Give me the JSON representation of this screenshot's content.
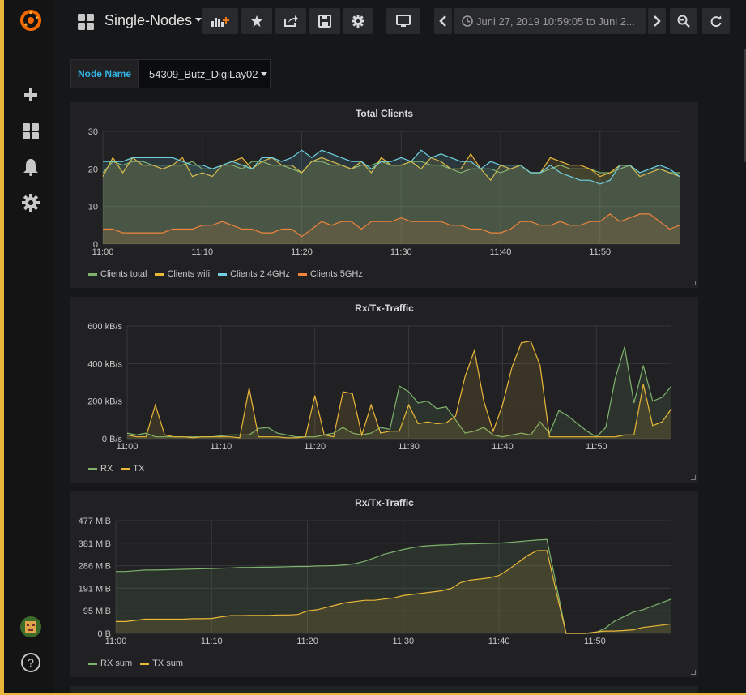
{
  "header": {
    "dashboard_title": "Single-Nodes",
    "time_range": "Juni 27, 2019 10:59:05 to Juni 2...",
    "icons": [
      "grafana-logo-icon",
      "dashboards-grid-icon",
      "add-panel-icon",
      "star-icon",
      "share-icon",
      "save-icon",
      "settings-icon",
      "tv-mode-icon",
      "chevron-left-icon",
      "clock-icon",
      "chevron-right-icon",
      "zoom-out-icon",
      "refresh-icon"
    ]
  },
  "sidebar": {
    "icons": [
      "grafana-logo-icon",
      "plus-icon",
      "dashboards-icon",
      "bell-icon",
      "gear-icon",
      "user-avatar",
      "help-icon"
    ],
    "help_label": "?"
  },
  "variable": {
    "label": "Node Name",
    "value": "54309_Butz_DigiLay02"
  },
  "colors": {
    "green": "#7eb26d",
    "yellow": "#eab839",
    "blue": "#6ed0e0",
    "orange": "#ef843c",
    "accent": "#33b5e5",
    "frame": "#e7b63a"
  },
  "panels": [
    {
      "title": "Total Clients",
      "legend": [
        "Clients total",
        "Clients wifi",
        "Clients 2.4GHz",
        "Clients 5GHz"
      ],
      "y_ticks": [
        "30",
        "20",
        "10",
        "0"
      ],
      "x_ticks": [
        "11:00",
        "11:10",
        "11:20",
        "11:30",
        "11:40",
        "11:50"
      ]
    },
    {
      "title": "Rx/Tx-Traffic",
      "legend": [
        "RX",
        "TX"
      ],
      "y_ticks": [
        "600 kB/s",
        "400 kB/s",
        "200 kB/s",
        "0 B/s"
      ],
      "x_ticks": [
        "11:00",
        "11:10",
        "11:20",
        "11:30",
        "11:40",
        "11:50"
      ]
    },
    {
      "title": "Rx/Tx-Traffic",
      "legend": [
        "RX sum",
        "TX sum"
      ],
      "y_ticks": [
        "477 MiB",
        "381 MiB",
        "286 MiB",
        "191 MiB",
        "95 MiB",
        "0 B"
      ],
      "x_ticks": [
        "11:00",
        "11:10",
        "11:20",
        "11:30",
        "11:40",
        "11:50"
      ]
    }
  ],
  "chart_data": [
    {
      "type": "area",
      "title": "Total Clients",
      "ylim": [
        0,
        30
      ],
      "x": [
        "11:00",
        "11:01",
        "11:02",
        "11:03",
        "11:04",
        "11:05",
        "11:06",
        "11:07",
        "11:08",
        "11:09",
        "11:10",
        "11:11",
        "11:12",
        "11:13",
        "11:14",
        "11:15",
        "11:16",
        "11:17",
        "11:18",
        "11:19",
        "11:20",
        "11:21",
        "11:22",
        "11:23",
        "11:24",
        "11:25",
        "11:26",
        "11:27",
        "11:28",
        "11:29",
        "11:30",
        "11:31",
        "11:32",
        "11:33",
        "11:34",
        "11:35",
        "11:36",
        "11:37",
        "11:38",
        "11:39",
        "11:40",
        "11:41",
        "11:42",
        "11:43",
        "11:44",
        "11:45",
        "11:46",
        "11:47",
        "11:48",
        "11:49",
        "11:50",
        "11:51",
        "11:52",
        "11:53",
        "11:54",
        "11:55",
        "11:56",
        "11:57",
        "11:58"
      ],
      "series": [
        {
          "name": "Clients total",
          "color": "#7eb26d",
          "values": [
            19,
            22,
            21,
            22,
            22,
            21,
            21,
            21,
            21,
            22,
            20,
            20,
            21,
            21,
            20,
            22,
            22,
            21,
            21,
            20,
            19,
            22,
            22,
            21,
            21,
            20,
            21,
            21,
            22,
            21,
            21,
            22,
            22,
            21,
            21,
            20,
            19,
            20,
            20,
            20,
            19,
            20,
            21,
            19,
            19,
            20,
            21,
            20,
            20,
            20,
            19,
            19,
            20,
            21,
            19,
            20,
            20,
            19,
            19
          ]
        },
        {
          "name": "Clients wifi",
          "color": "#eab839",
          "values": [
            18,
            23,
            19,
            23,
            21,
            21,
            20,
            21,
            23,
            18,
            19,
            18,
            21,
            22,
            23,
            20,
            22,
            23,
            21,
            21,
            19,
            22,
            23,
            22,
            21,
            20,
            22,
            19,
            23,
            21,
            21,
            22,
            20,
            23,
            22,
            20,
            20,
            24,
            20,
            17,
            21,
            20,
            21,
            19,
            19,
            23,
            22,
            21,
            21,
            20,
            18,
            19,
            21,
            21,
            18,
            19,
            20,
            19,
            18
          ]
        },
        {
          "name": "Clients 2.4GHz",
          "color": "#6ed0e0",
          "values": [
            22,
            22,
            22,
            23,
            23,
            23,
            23,
            23,
            22,
            21,
            21,
            20,
            21,
            22,
            21,
            20,
            23,
            23,
            22,
            23,
            25,
            23,
            25,
            24,
            23,
            22,
            22,
            20,
            22,
            22,
            23,
            22,
            25,
            23,
            24,
            23,
            22,
            22,
            20,
            22,
            21,
            21,
            21,
            19,
            19,
            21,
            19,
            18,
            17,
            17,
            16,
            17,
            21,
            21,
            19,
            20,
            21,
            20,
            18
          ]
        },
        {
          "name": "Clients 5GHz",
          "color": "#ef843c",
          "values": [
            4,
            4,
            3,
            3,
            3,
            3,
            3,
            4,
            4,
            4,
            5,
            5,
            6,
            5,
            4,
            4,
            3,
            3,
            4,
            4,
            2,
            4,
            6,
            5,
            6,
            6,
            4,
            6,
            6,
            6,
            7,
            6,
            6,
            6,
            6,
            5,
            5,
            4,
            4,
            3,
            3,
            4,
            6,
            6,
            5,
            5,
            6,
            5,
            5,
            6,
            6,
            8,
            6,
            7,
            8,
            8,
            6,
            4,
            5
          ]
        }
      ]
    },
    {
      "type": "area",
      "title": "Rx/Tx-Traffic",
      "ylim": [
        0,
        600
      ],
      "y_unit": "kB/s",
      "x": [
        "11:00",
        "11:01",
        "11:02",
        "11:03",
        "11:04",
        "11:05",
        "11:06",
        "11:07",
        "11:08",
        "11:09",
        "11:10",
        "11:11",
        "11:12",
        "11:13",
        "11:14",
        "11:15",
        "11:16",
        "11:17",
        "11:18",
        "11:19",
        "11:20",
        "11:21",
        "11:22",
        "11:23",
        "11:24",
        "11:25",
        "11:26",
        "11:27",
        "11:28",
        "11:29",
        "11:30",
        "11:31",
        "11:32",
        "11:33",
        "11:34",
        "11:35",
        "11:36",
        "11:37",
        "11:38",
        "11:39",
        "11:40",
        "11:41",
        "11:42",
        "11:43",
        "11:44",
        "11:45",
        "11:46",
        "11:47",
        "11:48",
        "11:49",
        "11:50",
        "11:51",
        "11:52",
        "11:53",
        "11:54",
        "11:55",
        "11:56",
        "11:57",
        "11:58"
      ],
      "series": [
        {
          "name": "RX",
          "color": "#7eb26d",
          "values": [
            30,
            20,
            30,
            10,
            10,
            10,
            10,
            10,
            10,
            10,
            15,
            20,
            20,
            20,
            55,
            60,
            30,
            20,
            10,
            10,
            10,
            20,
            30,
            60,
            30,
            20,
            30,
            60,
            50,
            280,
            250,
            190,
            200,
            160,
            170,
            100,
            30,
            40,
            60,
            20,
            10,
            20,
            30,
            20,
            90,
            30,
            150,
            120,
            80,
            40,
            10,
            60,
            320,
            490,
            190,
            390,
            200,
            220,
            280
          ]
        },
        {
          "name": "TX",
          "color": "#eab839",
          "values": [
            20,
            10,
            10,
            180,
            20,
            10,
            10,
            5,
            10,
            10,
            10,
            10,
            5,
            270,
            10,
            10,
            10,
            5,
            5,
            10,
            230,
            20,
            10,
            250,
            240,
            20,
            180,
            30,
            40,
            40,
            180,
            80,
            90,
            80,
            85,
            120,
            330,
            470,
            200,
            40,
            180,
            380,
            510,
            520,
            390,
            10,
            10,
            10,
            10,
            10,
            10,
            10,
            10,
            20,
            20,
            290,
            70,
            90,
            160
          ]
        }
      ]
    },
    {
      "type": "area",
      "title": "Rx/Tx-Traffic",
      "ylim": [
        0,
        477
      ],
      "y_unit": "MiB",
      "x": [
        "11:00",
        "11:01",
        "11:02",
        "11:03",
        "11:04",
        "11:05",
        "11:06",
        "11:07",
        "11:08",
        "11:09",
        "11:10",
        "11:11",
        "11:12",
        "11:13",
        "11:14",
        "11:15",
        "11:16",
        "11:17",
        "11:18",
        "11:19",
        "11:20",
        "11:21",
        "11:22",
        "11:23",
        "11:24",
        "11:25",
        "11:26",
        "11:27",
        "11:28",
        "11:29",
        "11:30",
        "11:31",
        "11:32",
        "11:33",
        "11:34",
        "11:35",
        "11:36",
        "11:37",
        "11:38",
        "11:39",
        "11:40",
        "11:41",
        "11:42",
        "11:43",
        "11:44",
        "11:45",
        "11:46",
        "11:47",
        "11:48",
        "11:49",
        "11:50",
        "11:51",
        "11:52",
        "11:53",
        "11:54",
        "11:55",
        "11:56",
        "11:57",
        "11:58"
      ],
      "series": [
        {
          "name": "RX sum",
          "color": "#7eb26d",
          "values": [
            262,
            262,
            265,
            268,
            268,
            269,
            270,
            271,
            272,
            273,
            274,
            276,
            277,
            279,
            279,
            280,
            280,
            281,
            282,
            283,
            283,
            285,
            286,
            287,
            290,
            295,
            305,
            320,
            335,
            345,
            355,
            363,
            369,
            372,
            374,
            375,
            378,
            379,
            380,
            381,
            382,
            385,
            388,
            392,
            395,
            397,
            200,
            0,
            0,
            0,
            2,
            20,
            50,
            70,
            90,
            100,
            115,
            130,
            145
          ]
        },
        {
          "name": "TX sum",
          "color": "#eab839",
          "values": [
            50,
            50,
            55,
            60,
            60,
            60,
            60,
            60,
            62,
            62,
            63,
            70,
            75,
            75,
            76,
            76,
            76,
            78,
            78,
            80,
            95,
            100,
            110,
            120,
            130,
            135,
            140,
            140,
            145,
            150,
            160,
            165,
            170,
            175,
            180,
            190,
            215,
            225,
            230,
            235,
            245,
            270,
            300,
            330,
            350,
            350,
            170,
            0,
            0,
            0,
            5,
            10,
            10,
            12,
            15,
            25,
            30,
            35,
            40
          ]
        }
      ]
    }
  ]
}
